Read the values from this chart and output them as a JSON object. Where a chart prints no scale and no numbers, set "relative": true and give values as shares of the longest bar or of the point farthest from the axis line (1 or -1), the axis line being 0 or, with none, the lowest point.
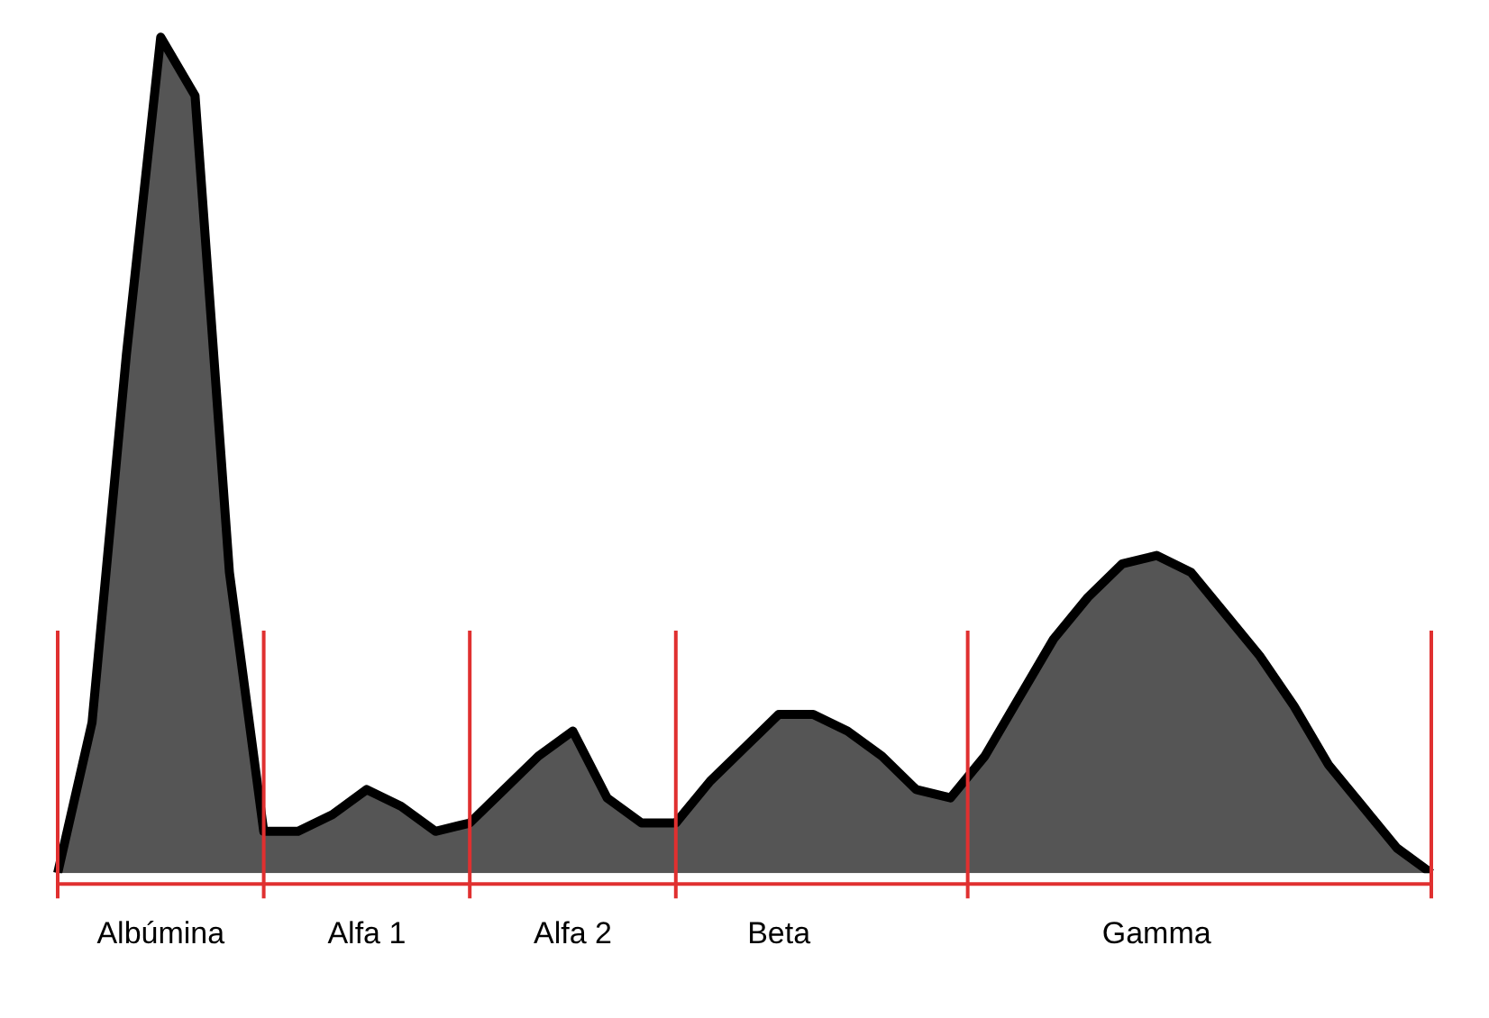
{
  "chart_data": {
    "type": "area",
    "relative": true,
    "categories": [
      null,
      null,
      null,
      "Albúmina",
      null,
      null,
      null,
      null,
      null,
      "Alfa 1",
      null,
      null,
      null,
      null,
      null,
      "Alfa 2",
      null,
      null,
      null,
      null,
      null,
      "Beta",
      null,
      null,
      null,
      null,
      null,
      null,
      null,
      null,
      null,
      null,
      "Gamma",
      null,
      null,
      null,
      null,
      null,
      null,
      null,
      null
    ],
    "values": [
      0,
      0.18,
      0.62,
      1.0,
      0.93,
      0.36,
      0.05,
      0.05,
      0.07,
      0.1,
      0.08,
      0.05,
      0.06,
      0.1,
      0.14,
      0.17,
      0.09,
      0.06,
      0.06,
      0.11,
      0.15,
      0.19,
      0.19,
      0.17,
      0.14,
      0.1,
      0.09,
      0.14,
      0.21,
      0.28,
      0.33,
      0.37,
      0.38,
      0.36,
      0.31,
      0.26,
      0.2,
      0.13,
      0.08,
      0.03,
      0
    ],
    "color": "#555555",
    "tick_labels": "x"
  }
}
